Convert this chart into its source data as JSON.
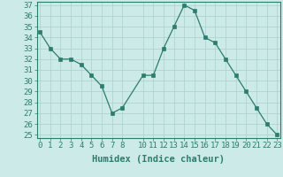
{
  "x": [
    0,
    1,
    2,
    3,
    4,
    5,
    6,
    7,
    8,
    10,
    11,
    12,
    13,
    14,
    15,
    16,
    17,
    18,
    19,
    20,
    21,
    22,
    23
  ],
  "y": [
    34.5,
    33.0,
    32.0,
    32.0,
    31.5,
    30.5,
    29.5,
    27.0,
    27.5,
    30.5,
    30.5,
    33.0,
    35.0,
    37.0,
    36.5,
    34.0,
    33.5,
    32.0,
    30.5,
    29.0,
    27.5,
    26.0,
    25.0
  ],
  "xlabel": "Humidex (Indice chaleur)",
  "ylim_min": 25,
  "ylim_max": 37,
  "xlim_min": -0.3,
  "xlim_max": 23.3,
  "yticks": [
    25,
    26,
    27,
    28,
    29,
    30,
    31,
    32,
    33,
    34,
    35,
    36,
    37
  ],
  "xticks": [
    0,
    1,
    2,
    3,
    4,
    5,
    6,
    7,
    8,
    10,
    11,
    12,
    13,
    14,
    15,
    16,
    17,
    18,
    19,
    20,
    21,
    22,
    23
  ],
  "line_color": "#2d7d6f",
  "bg_color": "#cceae7",
  "grid_color": "#aacfcc",
  "xlabel_fontsize": 7.5,
  "tick_fontsize": 6.5
}
